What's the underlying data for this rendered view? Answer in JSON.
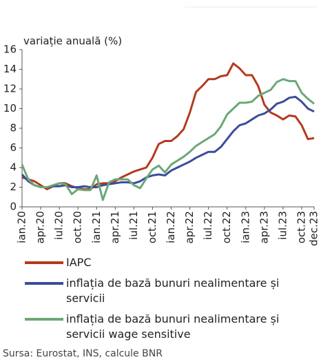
{
  "chart_data": {
    "type": "line",
    "ylabel": "variație anuală (%)",
    "categories": [
      "ian.20",
      null,
      null,
      "apr.20",
      null,
      null,
      "iul.20",
      null,
      null,
      "oct.20",
      null,
      null,
      "ian.21",
      null,
      null,
      "apr.21",
      null,
      null,
      "iul.21",
      null,
      null,
      "oct.21",
      null,
      null,
      "ian.22",
      null,
      null,
      "apr.22",
      null,
      null,
      "iul.22",
      null,
      null,
      "oct.22",
      null,
      null,
      "ian.23",
      null,
      null,
      "apr.23",
      null,
      null,
      "iul.23",
      null,
      null,
      "oct.23",
      null,
      "dec.23"
    ],
    "series": [
      {
        "name": "IAPC",
        "color": "#b5391e",
        "values": [
          3.0,
          2.8,
          2.6,
          2.2,
          1.8,
          2.1,
          2.4,
          2.4,
          2.1,
          1.9,
          1.8,
          1.8,
          2.3,
          2.4,
          2.4,
          2.6,
          3.0,
          3.3,
          3.6,
          3.8,
          4.0,
          5.0,
          6.4,
          6.7,
          6.7,
          7.2,
          7.9,
          9.6,
          11.7,
          12.3,
          13.0,
          13.0,
          13.3,
          13.4,
          14.6,
          14.1,
          13.4,
          13.4,
          12.3,
          10.4,
          9.6,
          9.3,
          8.9,
          9.3,
          9.2,
          8.3,
          6.9,
          7.0
        ]
      },
      {
        "name": "inflația de bază bunuri nealimentare și servicii",
        "color": "#3a4c9c",
        "values": [
          3.3,
          2.6,
          2.2,
          2.0,
          2.0,
          2.1,
          2.1,
          2.2,
          2.0,
          2.0,
          2.1,
          2.0,
          2.0,
          2.2,
          2.3,
          2.4,
          2.5,
          2.5,
          2.4,
          2.6,
          3.0,
          3.2,
          3.3,
          3.2,
          3.7,
          4.0,
          4.3,
          4.6,
          5.0,
          5.3,
          5.6,
          5.6,
          6.1,
          6.9,
          7.7,
          8.3,
          8.5,
          8.9,
          9.3,
          9.5,
          9.9,
          10.5,
          10.7,
          11.1,
          11.2,
          10.7,
          10.0,
          9.7
        ]
      },
      {
        "name": "inflația de bază bunuri nealimentare și servicii wage sensitive",
        "color": "#6aa877",
        "values": [
          4.3,
          2.8,
          2.2,
          2.0,
          2.0,
          2.2,
          2.4,
          2.3,
          1.3,
          1.8,
          1.7,
          1.7,
          3.2,
          0.7,
          2.5,
          2.8,
          2.8,
          2.8,
          2.2,
          1.9,
          2.9,
          3.8,
          4.2,
          3.5,
          4.3,
          4.7,
          5.1,
          5.6,
          6.2,
          6.6,
          7.0,
          7.4,
          8.2,
          9.4,
          10.0,
          10.6,
          10.6,
          10.7,
          11.3,
          11.6,
          11.9,
          12.7,
          13.0,
          12.8,
          12.8,
          11.6,
          11.0,
          10.5
        ]
      }
    ],
    "ylim": [
      0,
      16
    ],
    "yticks": [
      0,
      2,
      4,
      6,
      8,
      10,
      12,
      14,
      16
    ],
    "source": "Sursa: Eurostat, INS, calcule BNR"
  }
}
